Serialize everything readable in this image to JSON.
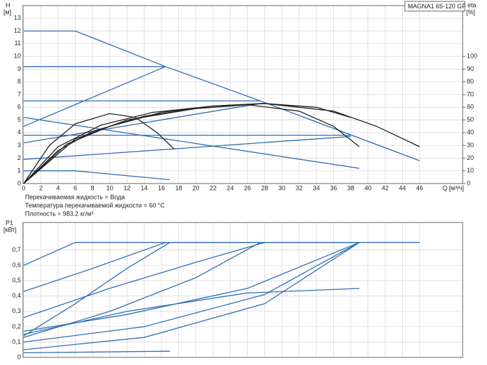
{
  "chart_data": [
    {
      "type": "line",
      "box_label": "MAGNA1 65-120 GF",
      "ylabel": "H",
      "yunit": "[м]",
      "y2label": "eta",
      "y2unit": "[%]",
      "xlabel": "Q [м³/ч]",
      "notes": [
        "Перекачиваемая жидкость = Вода",
        "Температура перекачиваемой жидкости = 60 °C",
        "Плотность = 983.2 кг/м³"
      ],
      "xlim": [
        0,
        51
      ],
      "xticks": [
        0,
        2,
        4,
        6,
        8,
        10,
        12,
        14,
        16,
        18,
        20,
        22,
        24,
        26,
        28,
        30,
        32,
        34,
        36,
        38,
        40,
        42,
        44,
        46
      ],
      "ylim": [
        0,
        14
      ],
      "yticks": [
        0,
        1,
        2,
        3,
        4,
        5,
        6,
        7,
        8,
        9,
        10,
        11,
        12,
        13
      ],
      "y2lim": [
        0,
        140
      ],
      "y2ticks": [
        0,
        10,
        20,
        30,
        40,
        50,
        60,
        70,
        80,
        90,
        100
      ],
      "grid": true,
      "series": [
        {
          "color": "#2e6db4",
          "x": [
            0,
            6,
            16.5,
            27.5,
            46
          ],
          "values": [
            12,
            12,
            9.2,
            6.5,
            1.8
          ]
        },
        {
          "color": "#2e6db4",
          "x": [
            0,
            16.5
          ],
          "values": [
            9.2,
            9.2
          ]
        },
        {
          "color": "#2e6db4",
          "x": [
            0,
            16.5
          ],
          "values": [
            4.5,
            9.2
          ]
        },
        {
          "color": "#2e6db4",
          "x": [
            0,
            27.5
          ],
          "values": [
            6.5,
            6.5
          ]
        },
        {
          "color": "#2e6db4",
          "x": [
            0,
            27.5
          ],
          "values": [
            3.2,
            6.3
          ]
        },
        {
          "color": "#2e6db4",
          "x": [
            0,
            39
          ],
          "values": [
            5.2,
            1.2
          ]
        },
        {
          "color": "#2e6db4",
          "x": [
            0,
            38
          ],
          "values": [
            3.8,
            3.8
          ]
        },
        {
          "color": "#2e6db4",
          "x": [
            0,
            38
          ],
          "values": [
            1.9,
            3.7
          ]
        },
        {
          "color": "#2e6db4",
          "x": [
            0,
            6,
            17
          ],
          "values": [
            1,
            1,
            0.3
          ]
        },
        {
          "color": "#222222",
          "axis": "y2",
          "x": [
            0,
            3,
            6,
            10,
            13,
            15.5,
            17.5
          ],
          "values": [
            0,
            30,
            47,
            55,
            52,
            40,
            27
          ]
        },
        {
          "color": "#222222",
          "axis": "y2",
          "x": [
            0,
            4,
            8,
            14,
            20,
            26,
            32,
            36,
            39
          ],
          "values": [
            0,
            26,
            41,
            53,
            59,
            62,
            57,
            45,
            29
          ]
        },
        {
          "color": "#222222",
          "axis": "y2",
          "x": [
            0,
            5,
            10,
            16,
            22,
            28,
            34,
            38
          ],
          "values": [
            0,
            31,
            45,
            56,
            61,
            63,
            60,
            52
          ]
        },
        {
          "color": "#222222",
          "axis": "y2",
          "x": [
            0,
            6,
            12,
            20,
            28,
            36,
            41,
            46
          ],
          "values": [
            0,
            35,
            50,
            59,
            63,
            57,
            45,
            29
          ]
        },
        {
          "color": "#222222",
          "axis": "y2",
          "x": [
            0,
            4,
            9,
            15,
            22,
            28,
            32
          ],
          "values": [
            0,
            29,
            46,
            56,
            61,
            63,
            60
          ]
        }
      ]
    },
    {
      "type": "line",
      "ylabel": "P1",
      "yunit": "[кВт]",
      "xlim": [
        0,
        51
      ],
      "ylim": [
        0,
        0.88
      ],
      "yticks": [
        0,
        {
          "value": 0.1,
          "label": "0,1"
        },
        {
          "value": 0.2,
          "label": "0,2"
        },
        {
          "value": 0.3,
          "label": "0,3"
        },
        {
          "value": 0.4,
          "label": "0,4"
        },
        {
          "value": 0.5,
          "label": "0,5"
        },
        {
          "value": 0.6,
          "label": "0,6"
        },
        {
          "value": 0.7,
          "label": "0,7"
        }
      ],
      "grid": true,
      "series": [
        {
          "color": "#2e6db4",
          "x": [
            0,
            6,
            46
          ],
          "values": [
            0.6,
            0.75,
            0.75
          ]
        },
        {
          "color": "#2e6db4",
          "x": [
            0,
            8,
            16.5,
            39
          ],
          "values": [
            0.43,
            0.58,
            0.75,
            0.75
          ]
        },
        {
          "color": "#2e6db4",
          "x": [
            0,
            10,
            20,
            28
          ],
          "values": [
            0.26,
            0.45,
            0.62,
            0.75
          ]
        },
        {
          "color": "#2e6db4",
          "x": [
            0,
            6,
            12,
            17
          ],
          "values": [
            0.14,
            0.35,
            0.58,
            0.75
          ]
        },
        {
          "color": "#2e6db4",
          "x": [
            0,
            10,
            20,
            27.5
          ],
          "values": [
            0.13,
            0.3,
            0.52,
            0.75
          ]
        },
        {
          "color": "#2e6db4",
          "x": [
            0,
            12,
            26,
            39
          ],
          "values": [
            0.17,
            0.28,
            0.45,
            0.75
          ]
        },
        {
          "color": "#2e6db4",
          "x": [
            0,
            14,
            28,
            39
          ],
          "values": [
            0.1,
            0.2,
            0.41,
            0.75
          ]
        },
        {
          "color": "#2e6db4",
          "x": [
            0,
            14,
            28,
            39
          ],
          "values": [
            0.05,
            0.13,
            0.35,
            0.75
          ]
        },
        {
          "color": "#2e6db4",
          "x": [
            0,
            12,
            26,
            39
          ],
          "values": [
            0.15,
            0.3,
            0.42,
            0.45
          ]
        },
        {
          "color": "#2e6db4",
          "x": [
            0,
            17
          ],
          "values": [
            0.03,
            0.04
          ]
        }
      ]
    }
  ]
}
